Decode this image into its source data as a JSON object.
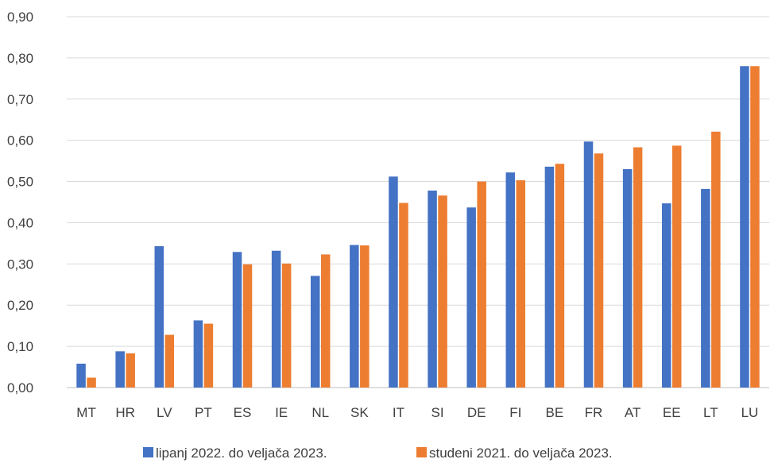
{
  "chart_data": {
    "type": "bar",
    "title": "",
    "xlabel": "",
    "ylabel": "",
    "ylim": [
      0,
      0.9
    ],
    "yticks": [
      "0,00",
      "0,10",
      "0,20",
      "0,30",
      "0,40",
      "0,50",
      "0,60",
      "0,70",
      "0,80",
      "0,90"
    ],
    "grid": true,
    "legend_position": "bottom",
    "categories": [
      "MT",
      "HR",
      "LV",
      "PT",
      "ES",
      "IE",
      "NL",
      "SK",
      "IT",
      "SI",
      "DE",
      "FI",
      "BE",
      "FR",
      "AT",
      "EE",
      "LT",
      "LU"
    ],
    "series": [
      {
        "name": "lipanj 2022. do veljača 2023.",
        "color": "#4472c4",
        "values": [
          0.058,
          0.088,
          0.343,
          0.163,
          0.329,
          0.332,
          0.271,
          0.346,
          0.512,
          0.478,
          0.437,
          0.522,
          0.536,
          0.597,
          0.53,
          0.447,
          0.482,
          0.78
        ]
      },
      {
        "name": "studeni 2021. do veljača 2023.",
        "color": "#ed7d31",
        "values": [
          0.024,
          0.083,
          0.128,
          0.155,
          0.299,
          0.301,
          0.323,
          0.345,
          0.448,
          0.466,
          0.5,
          0.503,
          0.543,
          0.568,
          0.583,
          0.587,
          0.621,
          0.78
        ]
      }
    ]
  }
}
